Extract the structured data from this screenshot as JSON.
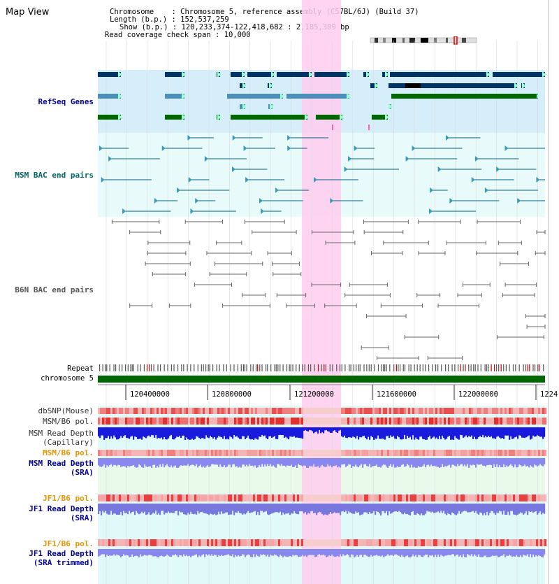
{
  "title": "Map View",
  "info": {
    "chromosome_key": "Chromosome",
    "chromosome_val": ": Chromosome 5, reference assembly (C57BL/6J) (Build 37)",
    "length_key": "Length (b.p.)",
    "length_val": ": 152,537,259",
    "show_key": "Show (b.p.)",
    "show_val": ": 120,233,374-122,418,682 : 2,185,309 bp",
    "coverage_key": "Read coverage check span",
    "coverage_val": ": 10,000"
  },
  "tracks": {
    "refseq": "RefSeq Genes",
    "msm_bac": "MSM BAC end pairs",
    "b6n_bac": "B6N BAC end pairs",
    "repeat": "Repeat",
    "chrom": "chromosome 5",
    "dbsnp": "dbSNP(Mouse)",
    "msm_b6_pol": "MSM/B6 pol.",
    "msm_depth_cap_1": "MSM Read Depth",
    "msm_depth_cap_2": "(Capillary)",
    "msm_b6_pol2": "MSM/B6 pol.",
    "msm_depth_sra_1": "MSM Read Depth",
    "msm_depth_sra_2": "(SRA)",
    "jf1_b6_pol": "JF1/B6 pol.",
    "jf1_depth_sra_1": "JF1 Read Depth",
    "jf1_depth_sra_2": "(SRA)",
    "jf1_b6_pol2": "JF1/B6 pol.",
    "jf1_depth_trim_1": "JF1 Read Depth",
    "jf1_depth_trim_2": "(SRA trimmed)"
  },
  "ticks": [
    "120400000",
    "120800000",
    "121200000",
    "121600000",
    "122000000",
    "1224"
  ],
  "colors": {
    "refseq_label": "#000099",
    "msm_label": "#006666",
    "b6n_label": "#555555",
    "pol_label": "#e69500",
    "depth_label": "#000099",
    "highlight": "#ffccee",
    "gene_blue_dark": "#003366",
    "gene_blue_light": "#4a90b8",
    "gene_green": "#006600",
    "msm_line": "#005f80",
    "b6n_line": "#666666"
  }
}
